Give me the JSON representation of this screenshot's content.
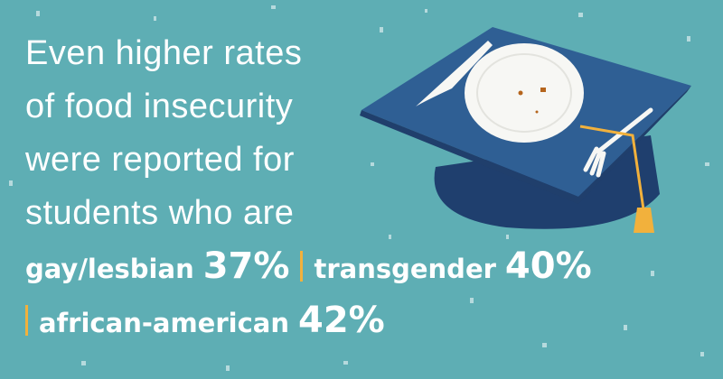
{
  "headline": [
    "Even higher rates",
    "of food insecurity",
    "were reported for",
    "students who are"
  ],
  "stats": [
    {
      "label": "gay/lesbian",
      "value": "37%"
    },
    {
      "label": "transgender",
      "value": "40%"
    },
    {
      "label": "african-american",
      "value": "42%"
    }
  ]
}
